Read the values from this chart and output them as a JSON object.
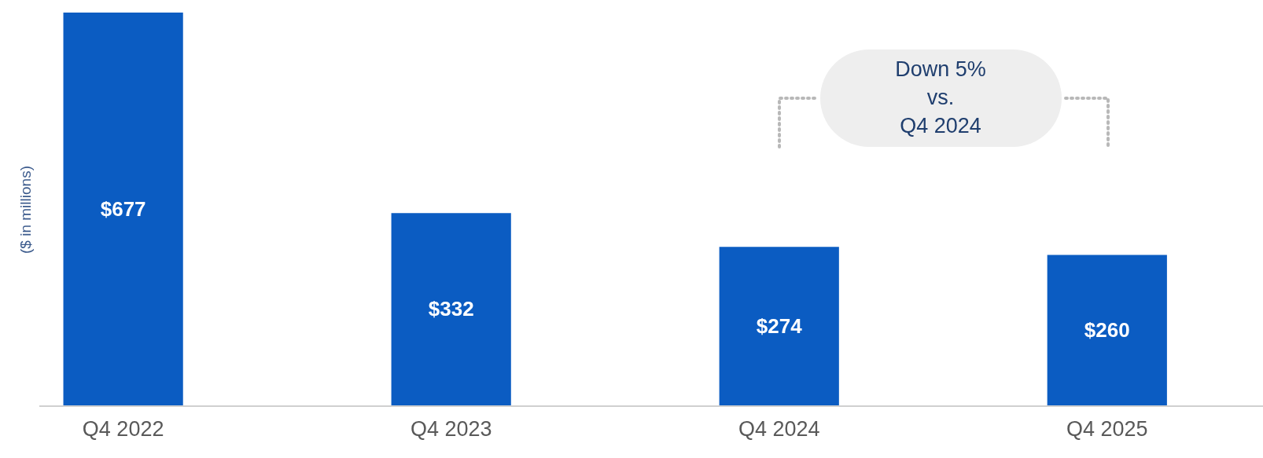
{
  "chart_data": {
    "type": "bar",
    "ylabel": "($ in millions)",
    "categories": [
      "Q4 2022",
      "Q4 2023",
      "Q4 2024",
      "Q4 2025"
    ],
    "values": [
      677,
      332,
      274,
      260
    ],
    "value_labels": [
      "$677",
      "$332",
      "$274",
      "$260"
    ],
    "color": "#0b5cc2",
    "annotations": [
      "Down 5%\nvs.\nQ4 2024"
    ],
    "grid": false
  }
}
